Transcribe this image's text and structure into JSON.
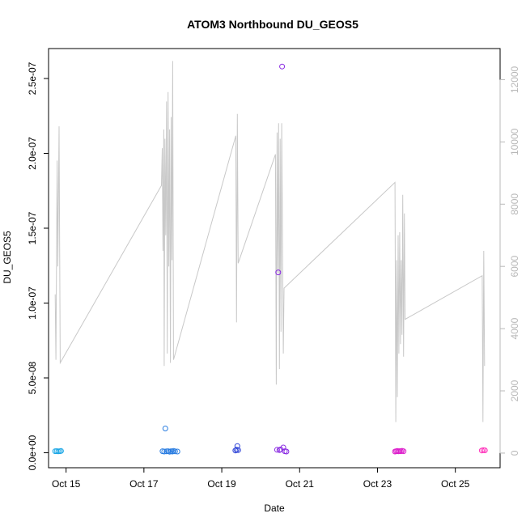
{
  "chart_data": {
    "type": "scatter",
    "title": "ATOM3 Northbound DU_GEOS5",
    "xlabel": "Date",
    "ylabel": "DU_GEOS5",
    "x_ticks": [
      "Oct 15",
      "Oct 17",
      "Oct 19",
      "Oct 21",
      "Oct 23",
      "Oct 25"
    ],
    "x_tick_days": [
      15,
      17,
      19,
      21,
      23,
      25
    ],
    "xlim": [
      14.55,
      26.15
    ],
    "y_ticks": [
      "0.0e+00",
      "5.0e-08",
      "1.0e-07",
      "1.5e-07",
      "2.0e-07",
      "2.5e-07"
    ],
    "y_tick_values": [
      0,
      5e-08,
      1e-07,
      1.5e-07,
      2e-07,
      2.5e-07
    ],
    "ylim": [
      -1e-08,
      2.7e-07
    ],
    "y2_ticks": [
      "0",
      "2000",
      "4000",
      "6000",
      "8000",
      "10000",
      "12000"
    ],
    "y2_tick_values": [
      0,
      2000,
      4000,
      6000,
      8000,
      10000,
      12000
    ],
    "y2lim": [
      -470,
      13000
    ],
    "grid": false,
    "series": [
      {
        "kind": "points",
        "points": [
          {
            "x": 14.72,
            "y": 1e-09,
            "color": "#1ea8e6"
          },
          {
            "x": 14.76,
            "y": 1.1e-09,
            "color": "#1ea8e6"
          },
          {
            "x": 14.8,
            "y": 9e-10,
            "color": "#1ea8e6"
          },
          {
            "x": 14.84,
            "y": 1e-09,
            "color": "#1ea8e6"
          },
          {
            "x": 14.87,
            "y": 1.2e-09,
            "color": "#1ea8e6"
          },
          {
            "x": 17.48,
            "y": 1e-09,
            "color": "#2a7de1"
          },
          {
            "x": 17.52,
            "y": 8e-10,
            "color": "#2a7de1"
          },
          {
            "x": 17.55,
            "y": 1.62e-08,
            "color": "#2a7de1"
          },
          {
            "x": 17.58,
            "y": 9e-10,
            "color": "#2a7de1"
          },
          {
            "x": 17.62,
            "y": 1e-09,
            "color": "#2a7de1"
          },
          {
            "x": 17.66,
            "y": 7e-10,
            "color": "#2a7de1"
          },
          {
            "x": 17.7,
            "y": 1e-09,
            "color": "#2a7de1"
          },
          {
            "x": 17.73,
            "y": 8e-10,
            "color": "#2a7de1"
          },
          {
            "x": 17.76,
            "y": 1.2e-09,
            "color": "#2a7de1"
          },
          {
            "x": 17.8,
            "y": 9e-10,
            "color": "#2a7de1"
          },
          {
            "x": 17.86,
            "y": 8e-10,
            "color": "#2a7de1"
          },
          {
            "x": 19.35,
            "y": 1.5e-09,
            "color": "#2a3fd6"
          },
          {
            "x": 19.38,
            "y": 2e-09,
            "color": "#2a3fd6"
          },
          {
            "x": 19.4,
            "y": 4.5e-09,
            "color": "#2a3fd6"
          },
          {
            "x": 19.42,
            "y": 1.8e-09,
            "color": "#2a3fd6"
          },
          {
            "x": 20.42,
            "y": 2e-09,
            "color": "#8a2be2"
          },
          {
            "x": 20.45,
            "y": 1.205e-07,
            "color": "#8a2be2"
          },
          {
            "x": 20.48,
            "y": 1.8e-09,
            "color": "#8a2be2"
          },
          {
            "x": 20.51,
            "y": 2.2e-09,
            "color": "#8a2be2"
          },
          {
            "x": 20.55,
            "y": 2.58e-07,
            "color": "#8a2be2"
          },
          {
            "x": 20.58,
            "y": 3.5e-09,
            "color": "#8a2be2"
          },
          {
            "x": 20.62,
            "y": 1e-09,
            "color": "#8a2be2"
          },
          {
            "x": 20.66,
            "y": 8e-10,
            "color": "#8a2be2"
          },
          {
            "x": 23.45,
            "y": 8e-10,
            "color": "#dd22cc"
          },
          {
            "x": 23.48,
            "y": 1e-09,
            "color": "#dd22cc"
          },
          {
            "x": 23.51,
            "y": 1.2e-09,
            "color": "#dd22cc"
          },
          {
            "x": 23.54,
            "y": 9e-10,
            "color": "#dd22cc"
          },
          {
            "x": 23.57,
            "y": 1.1e-09,
            "color": "#dd22cc"
          },
          {
            "x": 23.6,
            "y": 1e-09,
            "color": "#dd22cc"
          },
          {
            "x": 23.63,
            "y": 1.3e-09,
            "color": "#dd22cc"
          },
          {
            "x": 23.67,
            "y": 1e-09,
            "color": "#dd22cc"
          },
          {
            "x": 25.68,
            "y": 1.5e-09,
            "color": "#ff33bb"
          },
          {
            "x": 25.72,
            "y": 1.8e-09,
            "color": "#ff33bb"
          },
          {
            "x": 25.76,
            "y": 1.6e-09,
            "color": "#ff33bb"
          }
        ]
      },
      {
        "kind": "line",
        "axis": "right",
        "color": "#c8c8c8",
        "points": [
          [
            14.72,
            5100
          ],
          [
            14.74,
            3000
          ],
          [
            14.77,
            9400
          ],
          [
            14.79,
            6000
          ],
          [
            14.82,
            10500
          ],
          [
            14.85,
            2900
          ],
          [
            17.45,
            8600
          ],
          [
            17.47,
            9800
          ],
          [
            17.49,
            6500
          ],
          [
            17.51,
            10400
          ],
          [
            17.52,
            2800
          ],
          [
            17.54,
            10100
          ],
          [
            17.56,
            7000
          ],
          [
            17.58,
            11300
          ],
          [
            17.6,
            3200
          ],
          [
            17.62,
            11600
          ],
          [
            17.64,
            6000
          ],
          [
            17.66,
            10400
          ],
          [
            17.68,
            2900
          ],
          [
            17.7,
            10800
          ],
          [
            17.72,
            6200
          ],
          [
            17.74,
            12600
          ],
          [
            17.76,
            3000
          ],
          [
            19.36,
            10200
          ],
          [
            19.38,
            4200
          ],
          [
            19.4,
            10900
          ],
          [
            19.42,
            6100
          ],
          [
            20.38,
            9600
          ],
          [
            20.4,
            2200
          ],
          [
            20.42,
            10300
          ],
          [
            20.44,
            5800
          ],
          [
            20.46,
            10600
          ],
          [
            20.48,
            2700
          ],
          [
            20.5,
            10100
          ],
          [
            20.52,
            3900
          ],
          [
            20.54,
            10600
          ],
          [
            20.56,
            7000
          ],
          [
            20.58,
            3200
          ],
          [
            20.6,
            5300
          ],
          [
            23.45,
            8700
          ],
          [
            23.47,
            1000
          ],
          [
            23.49,
            6200
          ],
          [
            23.51,
            1800
          ],
          [
            23.53,
            7000
          ],
          [
            23.55,
            3200
          ],
          [
            23.57,
            7100
          ],
          [
            23.59,
            3500
          ],
          [
            23.61,
            6200
          ],
          [
            23.63,
            3800
          ],
          [
            23.65,
            8300
          ],
          [
            23.67,
            3100
          ],
          [
            23.69,
            7700
          ],
          [
            23.71,
            4300
          ],
          [
            25.69,
            5700
          ],
          [
            25.71,
            1000
          ],
          [
            25.73,
            6500
          ],
          [
            25.75,
            2800
          ]
        ]
      }
    ]
  }
}
